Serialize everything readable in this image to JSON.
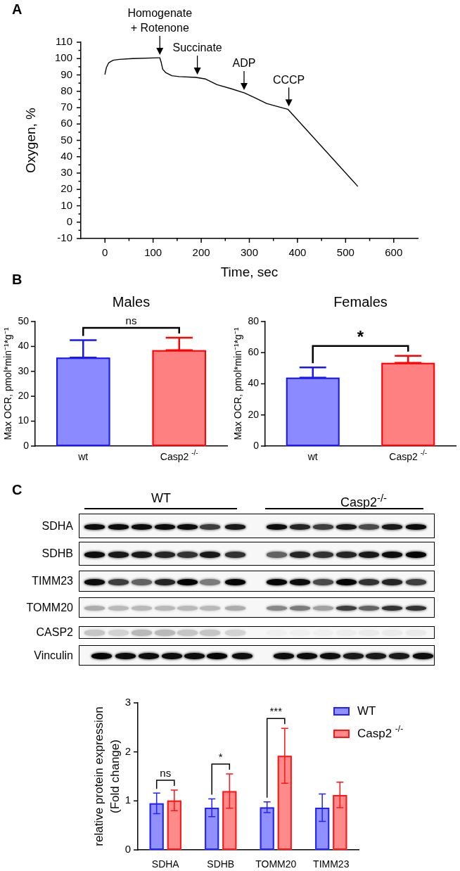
{
  "chart_data": [
    {
      "type": "line",
      "annotations": [
        "A",
        {
          "text": "Homogenate\n+ Rotenone",
          "x": 114,
          "y": 100.5
        },
        {
          "text": "Succinate",
          "x": 192,
          "y": 88.5
        },
        {
          "text": "ADP",
          "x": 289,
          "y": 79
        },
        {
          "text": "CCCP",
          "x": 382,
          "y": 69
        }
      ],
      "xlabel": "Time, sec",
      "ylabel": "Oxygen, %",
      "x": [
        0,
        3,
        8,
        17,
        30,
        57,
        111,
        114,
        117,
        120,
        126,
        139,
        154,
        189,
        209,
        233,
        263,
        290,
        312,
        336,
        361,
        380,
        525
      ],
      "values": [
        90.5,
        94.5,
        97.5,
        99,
        99.5,
        100,
        100.5,
        100.5,
        97.5,
        93.5,
        91.5,
        89.5,
        89,
        88.5,
        87.5,
        84,
        81.5,
        79,
        76,
        72.5,
        70.5,
        69,
        22
      ],
      "color": "#000000",
      "xlim": [
        -50,
        650
      ],
      "ylim": [
        -10,
        110
      ],
      "xticks": [
        0,
        {
          "value": 50,
          "label": null
        },
        100,
        {
          "value": 150,
          "label": null
        },
        200,
        {
          "value": 250,
          "label": null
        },
        300,
        {
          "value": 350,
          "label": null
        },
        400,
        {
          "value": 450,
          "label": null
        },
        500,
        {
          "value": 550,
          "label": null
        },
        600
      ],
      "yticks": [
        -10,
        {
          "value": -5,
          "label": null
        },
        0,
        {
          "value": 5,
          "label": null
        },
        10,
        {
          "value": 15,
          "label": null
        },
        20,
        {
          "value": 25,
          "label": null
        },
        30,
        {
          "value": 35,
          "label": null
        },
        40,
        {
          "value": 45,
          "label": null
        },
        50,
        {
          "value": 55,
          "label": null
        },
        60,
        {
          "value": 65,
          "label": null
        },
        70,
        {
          "value": 75,
          "label": null
        },
        80,
        {
          "value": 85,
          "label": null
        },
        90,
        {
          "value": 95,
          "label": null
        },
        100,
        {
          "value": 105,
          "label": null
        },
        110
      ]
    },
    {
      "type": "other",
      "annotations": [
        "B"
      ]
    },
    {
      "type": "bar",
      "annotations": [
        "ns"
      ],
      "title": "Males",
      "ylabel": "Max OCR, pmol*min⁻¹*g⁻¹",
      "categories": [
        "wt",
        "Casp2 $^{-/-}$"
      ],
      "values": [
        35.5,
        38.5
      ],
      "colors": [
        "#8b8bff",
        "#ff8080"
      ],
      "errors": [
        [
          35.5,
          42.5
        ],
        [
          38.5,
          43.5
        ]
      ],
      "ylim": [
        0,
        50
      ],
      "yticks": [
        0,
        10,
        20,
        30,
        40,
        50
      ]
    },
    {
      "type": "bar",
      "annotations": [
        "*"
      ],
      "title": "Females",
      "ylabel": "Max OCR, pmol*min⁻¹*g⁻¹",
      "categories": [
        "wt",
        "Casp2 $^{-/-}$"
      ],
      "values": [
        44,
        53.5
      ],
      "colors": [
        "#8b8bff",
        "#ff8080"
      ],
      "errors": [
        [
          44,
          50.5
        ],
        [
          53.5,
          58
        ]
      ],
      "ylim": [
        0,
        80
      ],
      "yticks": [
        0,
        20,
        40,
        60,
        80
      ]
    },
    {
      "type": "other",
      "annotations": [
        "C"
      ],
      "categories": [
        "WT",
        "Casp2$^{-/-}$"
      ],
      "y_categories": [
        "SDHA",
        "SDHB",
        "TIMM23",
        "TOMM20",
        "CASP2",
        "Vinculin"
      ]
    },
    {
      "type": "bar",
      "ylabel": "relative protein expression\n(Fold change)",
      "categories": [
        "SDHA",
        "SDHB",
        "TOMM20",
        "TIMM23"
      ],
      "series": [
        {
          "name": "WT",
          "color": "#9090ff",
          "values": [
            0.95,
            0.86,
            0.87,
            0.86
          ],
          "errors": [
            0.21,
            0.18,
            0.11,
            0.28
          ]
        },
        {
          "name": "Casp2 $^{-/-}$",
          "color": "#ff8a8a",
          "values": [
            1.01,
            1.2,
            1.92,
            1.12
          ],
          "errors": [
            0.21,
            0.35,
            0.56,
            0.26
          ]
        }
      ],
      "ylim": [
        0,
        3
      ],
      "yticks": [
        0,
        1,
        2,
        3
      ],
      "legend": "top right",
      "annotations": [
        "ns",
        "*",
        "***"
      ]
    }
  ]
}
